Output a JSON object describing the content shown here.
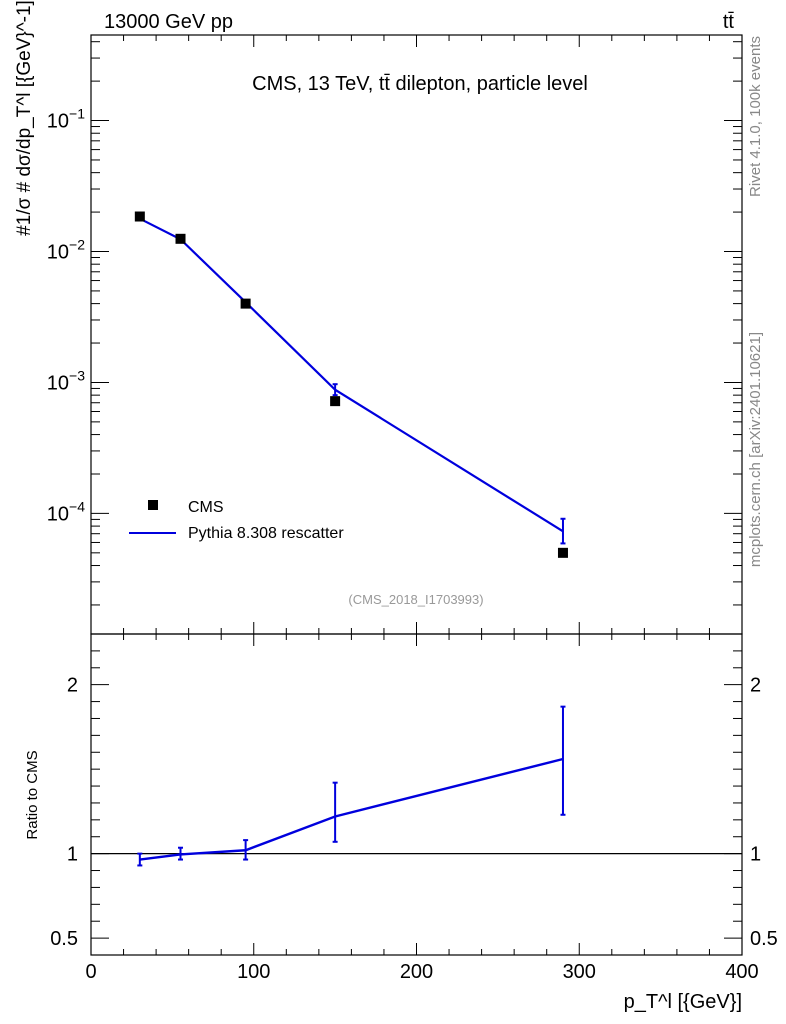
{
  "header": {
    "left": "13000 GeV pp",
    "right": "tt̄"
  },
  "side": {
    "rivet": "Rivet 4.1.0,  100k events",
    "mcplots": "mcplots.cern.ch [arXiv:2401.10621]"
  },
  "colors": {
    "data": "#000000",
    "mc": "#0000dd",
    "grey": "#888888"
  },
  "chart_data": [
    {
      "type": "line",
      "title": "CMS, 13 TeV, tt̄ dilepton, particle level",
      "analysis": "(CMS_2018_I1703993)",
      "ylabel": "#1/σ # dσ/dp_T^l [{GeV}^-1]",
      "yscale": "log",
      "ylim": [
        1.2e-05,
        0.45
      ],
      "xlim": [
        0,
        400
      ],
      "yticks": [
        {
          "v": 0.1,
          "base": "10",
          "exp": "−1"
        },
        {
          "v": 0.01,
          "base": "10",
          "exp": "−2"
        },
        {
          "v": 0.001,
          "base": "10",
          "exp": "−3"
        },
        {
          "v": 0.0001,
          "base": "10",
          "exp": "−4"
        }
      ],
      "legend": [
        {
          "label": "CMS",
          "kind": "marker"
        },
        {
          "label": "Pythia 8.308 rescatter",
          "kind": "line"
        }
      ],
      "series": [
        {
          "name": "CMS",
          "x": [
            30,
            55,
            95,
            150,
            290
          ],
          "y": [
            0.0185,
            0.0125,
            0.004,
            0.00072,
            5e-05
          ]
        },
        {
          "name": "Pythia 8.308 rescatter",
          "x": [
            30,
            55,
            95,
            150,
            290
          ],
          "y": [
            0.0178,
            0.0124,
            0.0041,
            0.00088,
            7.3e-05
          ],
          "err_lo": [
            0.0175,
            0.0122,
            0.004,
            0.0008,
            5.9e-05
          ],
          "err_hi": [
            0.0182,
            0.0127,
            0.0042,
            0.00097,
            9.1e-05
          ]
        }
      ]
    },
    {
      "type": "line",
      "ylabel": "Ratio to CMS",
      "xlabel": "p_T^l [{GeV}]",
      "ylim": [
        0.4,
        2.3
      ],
      "xlim": [
        0,
        400
      ],
      "yticks": [
        {
          "v": 0.5,
          "label": "0.5"
        },
        {
          "v": 1,
          "label": "1"
        },
        {
          "v": 2,
          "label": "2"
        }
      ],
      "xticks": [
        {
          "v": 0,
          "label": "0"
        },
        {
          "v": 100,
          "label": "100"
        },
        {
          "v": 200,
          "label": "200"
        },
        {
          "v": 300,
          "label": "300"
        },
        {
          "v": 400,
          "label": "400"
        }
      ],
      "reference": 1,
      "series": [
        {
          "name": "Pythia 8.308 rescatter / CMS",
          "x": [
            30,
            55,
            95,
            150,
            290
          ],
          "y": [
            0.965,
            0.995,
            1.02,
            1.22,
            1.56
          ],
          "err_lo": [
            0.93,
            0.965,
            0.965,
            1.07,
            1.23
          ],
          "err_hi": [
            1.0,
            1.035,
            1.08,
            1.42,
            1.87
          ]
        }
      ]
    }
  ]
}
